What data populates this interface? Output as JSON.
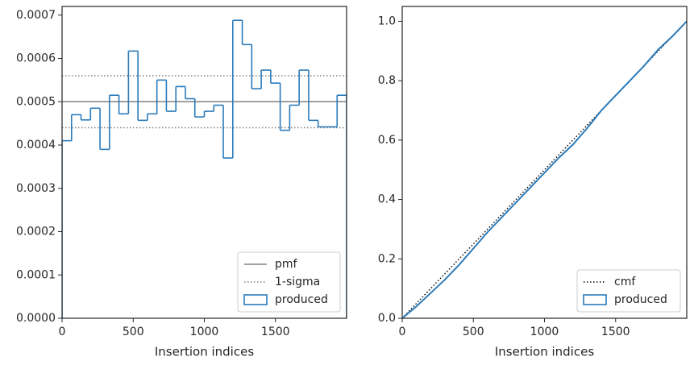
{
  "chart_data": [
    {
      "type": "histogram",
      "xlabel": "Insertion indices",
      "bins": [
        0,
        66.7,
        133.3,
        200,
        266.7,
        333.3,
        400,
        466.7,
        533.3,
        600,
        666.7,
        733.3,
        800,
        866.7,
        933.3,
        1000,
        1066.7,
        1133.3,
        1200,
        1266.7,
        1333.3,
        1400,
        1466.7,
        1533.3,
        1600,
        1666.7,
        1733.3,
        1800,
        1866.7,
        1933.3,
        2000
      ],
      "series": [
        {
          "name": "produced",
          "color": "#2b7bba",
          "values": [
            0.00041,
            0.00047,
            0.000458,
            0.000485,
            0.00039,
            0.000515,
            0.000472,
            0.000617,
            0.000457,
            0.000472,
            0.00055,
            0.000478,
            0.000535,
            0.000507,
            0.000465,
            0.000478,
            0.000492,
            0.00037,
            0.000688,
            0.000632,
            0.00053,
            0.000573,
            0.000543,
            0.000434,
            0.000492,
            0.000573,
            0.000457,
            0.000442,
            0.000442,
            0.000515
          ]
        }
      ],
      "hlines": [
        {
          "name": "pmf",
          "color": "#808080",
          "style": "solid",
          "values": [
            0.0005
          ]
        },
        {
          "name": "1-sigma",
          "color": "#808080",
          "style": "dotted",
          "values": [
            0.00044,
            0.00056
          ]
        }
      ],
      "xlim": [
        0,
        2000
      ],
      "xticks": [
        0,
        500,
        1000,
        1500
      ],
      "ylim": [
        0,
        0.00072
      ],
      "yticks": [
        {
          "value": 0,
          "label": "0.0000"
        },
        {
          "value": 0.0001,
          "label": "0.0001"
        },
        {
          "value": 0.0002,
          "label": "0.0002"
        },
        {
          "value": 0.0003,
          "label": "0.0003"
        },
        {
          "value": 0.0004,
          "label": "0.0004"
        },
        {
          "value": 0.0005,
          "label": "0.0005"
        },
        {
          "value": 0.0006,
          "label": "0.0006"
        },
        {
          "value": 0.0007,
          "label": "0.0007"
        }
      ],
      "legend": "lower right"
    },
    {
      "type": "line",
      "xlabel": "Insertion indices",
      "series": [
        {
          "name": "cmf",
          "color": "#000000",
          "style": "dotted",
          "x": [
            0,
            2000
          ],
          "values": [
            0,
            1
          ]
        },
        {
          "name": "produced",
          "color": "#2b7bba",
          "style": "step",
          "x": [
            0,
            100,
            200,
            300,
            400,
            500,
            600,
            700,
            800,
            900,
            1000,
            1100,
            1200,
            1300,
            1400,
            1500,
            1600,
            1700,
            1800,
            1900,
            2000
          ],
          "values": [
            0,
            0.04,
            0.085,
            0.13,
            0.18,
            0.235,
            0.29,
            0.34,
            0.39,
            0.44,
            0.49,
            0.54,
            0.585,
            0.64,
            0.7,
            0.75,
            0.8,
            0.85,
            0.905,
            0.95,
            1
          ]
        }
      ],
      "xlim": [
        0,
        2000
      ],
      "xticks": [
        0,
        500,
        1000,
        1500
      ],
      "ylim": [
        0,
        1.05
      ],
      "yticks": [
        {
          "value": 0,
          "label": "0.0"
        },
        {
          "value": 0.2,
          "label": "0.2"
        },
        {
          "value": 0.4,
          "label": "0.4"
        },
        {
          "value": 0.6,
          "label": "0.6"
        },
        {
          "value": 0.8,
          "label": "0.8"
        },
        {
          "value": 1,
          "label": "1.0"
        }
      ],
      "legend": "lower right"
    }
  ]
}
